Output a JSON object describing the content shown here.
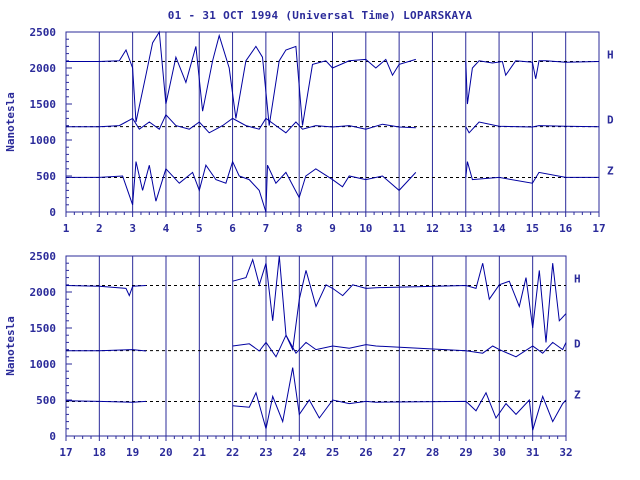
{
  "title": "01 - 31 OCT 1994 (Universal Time) LOPARSKAYA",
  "colors": {
    "axis": "#2b2b9a",
    "trace": "#0000a0",
    "baseline": "#000000"
  },
  "chart_data": [
    {
      "type": "line",
      "ylabel": "Nanotesla",
      "ylim": [
        0,
        2500
      ],
      "yticks": [
        "0",
        "500",
        "1000",
        "1500",
        "2000",
        "2500"
      ],
      "xlim": [
        1,
        17
      ],
      "xticks": [
        "1",
        "2",
        "3",
        "4",
        "5",
        "6",
        "7",
        "8",
        "9",
        "10",
        "11",
        "12",
        "13",
        "14",
        "15",
        "16",
        "17"
      ],
      "series": [
        {
          "name": "H",
          "baseline": 2090,
          "x": [
            1,
            2,
            2.6,
            2.8,
            3,
            3.1,
            3.4,
            3.6,
            3.8,
            4,
            4.3,
            4.6,
            4.9,
            5.1,
            5.4,
            5.6,
            5.9,
            6.1,
            6.4,
            6.7,
            6.9,
            7.1,
            7.4,
            7.6,
            7.9,
            8.1,
            8.4,
            8.8,
            9,
            9.5,
            10,
            10.3,
            10.6,
            10.8,
            11,
            11.5,
            12.9,
            13,
            13.05,
            13.2,
            13.4,
            13.8,
            14.1,
            14.2,
            14.5,
            15,
            15.1,
            15.2,
            15.4,
            16,
            17
          ],
          "y": [
            2090,
            2090,
            2100,
            2250,
            2000,
            1250,
            1900,
            2350,
            2500,
            1500,
            2150,
            1800,
            2300,
            1400,
            2100,
            2450,
            2000,
            1300,
            2100,
            2300,
            2150,
            1200,
            2100,
            2250,
            2300,
            1200,
            2050,
            2100,
            2000,
            2100,
            2120,
            2000,
            2120,
            1900,
            2050,
            2120,
            null,
            2090,
            1500,
            2000,
            2100,
            2070,
            2090,
            1900,
            2100,
            2080,
            1850,
            2100,
            2100,
            2080,
            2090
          ]
        },
        {
          "name": "D",
          "baseline": 1185,
          "x": [
            1,
            2,
            2.6,
            2.8,
            3,
            3.2,
            3.5,
            3.8,
            4,
            4.3,
            4.7,
            5,
            5.3,
            5.7,
            6,
            6.4,
            6.8,
            7,
            7.3,
            7.6,
            7.9,
            8.1,
            8.5,
            9,
            9.5,
            10,
            10.5,
            11,
            11.5,
            12.9,
            13,
            13.1,
            13.4,
            14,
            15,
            15.2,
            16,
            17
          ],
          "y": [
            1185,
            1185,
            1200,
            1250,
            1300,
            1150,
            1250,
            1150,
            1350,
            1200,
            1150,
            1250,
            1100,
            1200,
            1300,
            1200,
            1150,
            1300,
            1200,
            1100,
            1250,
            1150,
            1200,
            1180,
            1200,
            1150,
            1220,
            1180,
            1170,
            null,
            1185,
            1100,
            1250,
            1190,
            1180,
            1200,
            1190,
            1185
          ]
        },
        {
          "name": "Z",
          "baseline": 480,
          "x": [
            1,
            2,
            2.7,
            3,
            3.1,
            3.3,
            3.5,
            3.7,
            4,
            4.4,
            4.8,
            5,
            5.2,
            5.5,
            5.8,
            6,
            6.2,
            6.5,
            6.8,
            7,
            7.05,
            7.3,
            7.6,
            8,
            8.2,
            8.5,
            9,
            9.3,
            9.5,
            10,
            10.5,
            11,
            11.5,
            12.9,
            13,
            13.05,
            13.2,
            14,
            15,
            15.2,
            16,
            17
          ],
          "y": [
            480,
            480,
            500,
            100,
            700,
            300,
            650,
            150,
            600,
            400,
            550,
            300,
            650,
            450,
            400,
            700,
            500,
            450,
            300,
            0,
            650,
            400,
            550,
            200,
            500,
            600,
            450,
            350,
            500,
            450,
            500,
            300,
            550,
            null,
            480,
            700,
            450,
            480,
            400,
            550,
            480,
            480
          ]
        }
      ]
    },
    {
      "type": "line",
      "ylabel": "Nanotesla",
      "ylim": [
        0,
        2500
      ],
      "yticks": [
        "0",
        "500",
        "1000",
        "1500",
        "2000",
        "2500"
      ],
      "xlim": [
        17,
        32
      ],
      "xticks": [
        "17",
        "18",
        "19",
        "20",
        "21",
        "22",
        "23",
        "24",
        "25",
        "26",
        "27",
        "28",
        "29",
        "30",
        "31",
        "32"
      ],
      "series": [
        {
          "name": "H",
          "baseline": 2090,
          "x": [
            17,
            18,
            18.8,
            18.9,
            19,
            19.4,
            21.5,
            22,
            22.4,
            22.6,
            22.8,
            23,
            23.2,
            23.4,
            23.6,
            23.8,
            24,
            24.2,
            24.5,
            24.8,
            25,
            25.3,
            25.6,
            26,
            26.3,
            29,
            29.3,
            29.5,
            29.7,
            30,
            30.3,
            30.6,
            30.8,
            31,
            31.2,
            31.4,
            31.6,
            31.8,
            32
          ],
          "y": [
            2090,
            2080,
            2050,
            1950,
            2080,
            2090,
            null,
            2150,
            2200,
            2450,
            2100,
            2400,
            1600,
            2500,
            1400,
            1200,
            1900,
            2300,
            1800,
            2100,
            2050,
            1950,
            2100,
            2050,
            2060,
            2090,
            2050,
            2400,
            1900,
            2100,
            2150,
            1800,
            2200,
            1500,
            2300,
            1300,
            2400,
            1600,
            1700
          ]
        },
        {
          "name": "D",
          "baseline": 1185,
          "x": [
            17,
            18,
            19,
            19.4,
            21.5,
            22,
            22.5,
            22.8,
            23,
            23.3,
            23.6,
            23.9,
            24.2,
            24.5,
            25,
            25.5,
            26,
            26.3,
            29,
            29.5,
            29.8,
            30,
            30.5,
            31,
            31.3,
            31.6,
            31.9,
            32
          ],
          "y": [
            1185,
            1185,
            1200,
            1180,
            null,
            1250,
            1280,
            1180,
            1300,
            1100,
            1400,
            1150,
            1300,
            1200,
            1250,
            1220,
            1270,
            1250,
            1185,
            1150,
            1250,
            1200,
            1100,
            1250,
            1150,
            1300,
            1200,
            1300
          ]
        },
        {
          "name": "Z",
          "baseline": 480,
          "x": [
            17,
            18,
            19,
            19.4,
            21.5,
            22,
            22.5,
            22.7,
            23,
            23.2,
            23.5,
            23.8,
            24,
            24.3,
            24.6,
            25,
            25.5,
            26,
            26.3,
            29,
            29.3,
            29.6,
            29.9,
            30.2,
            30.5,
            30.9,
            31,
            31.3,
            31.6,
            31.9,
            32
          ],
          "y": [
            490,
            480,
            470,
            480,
            null,
            420,
            400,
            600,
            100,
            550,
            200,
            950,
            300,
            500,
            250,
            500,
            450,
            480,
            470,
            480,
            350,
            600,
            250,
            450,
            300,
            500,
            80,
            550,
            200,
            450,
            500
          ]
        }
      ]
    }
  ]
}
